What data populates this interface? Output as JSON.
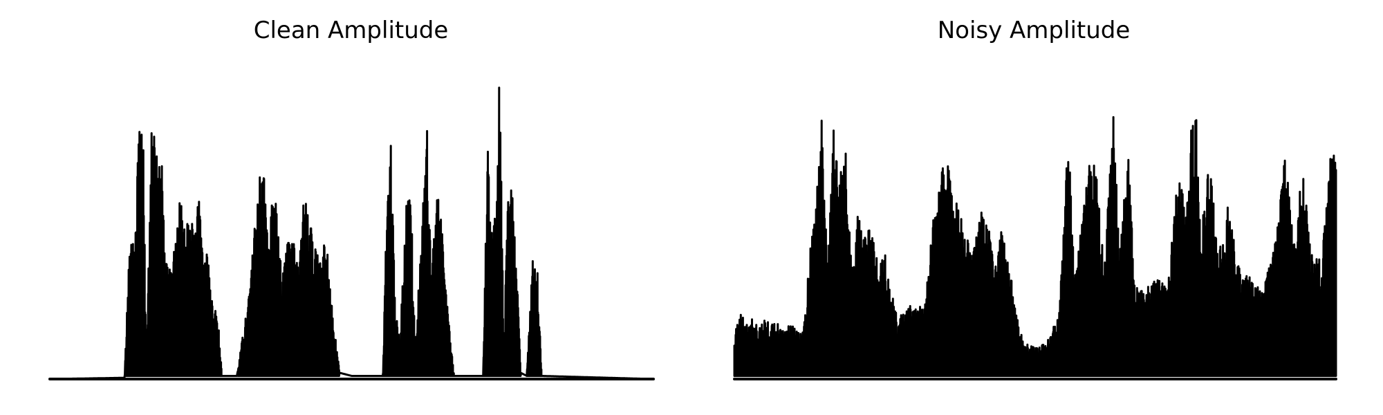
{
  "chart_data": [
    {
      "type": "line",
      "title": "Clean Amplitude",
      "xlabel": "",
      "ylabel": "",
      "axes": "off",
      "grid": false,
      "color": "#000000",
      "ylim": [
        0,
        1.0
      ],
      "envelope": [
        [
          0.0,
          0.0
        ],
        [
          0.124,
          0.004
        ],
        [
          0.13,
          0.35
        ],
        [
          0.135,
          0.55
        ],
        [
          0.14,
          0.35
        ],
        [
          0.148,
          0.83
        ],
        [
          0.155,
          0.75
        ],
        [
          0.16,
          0.03
        ],
        [
          0.168,
          0.79
        ],
        [
          0.172,
          0.8
        ],
        [
          0.178,
          0.7
        ],
        [
          0.185,
          0.75
        ],
        [
          0.192,
          0.38
        ],
        [
          0.2,
          0.35
        ],
        [
          0.21,
          0.45
        ],
        [
          0.215,
          0.62
        ],
        [
          0.222,
          0.48
        ],
        [
          0.23,
          0.51
        ],
        [
          0.24,
          0.5
        ],
        [
          0.248,
          0.58
        ],
        [
          0.255,
          0.4
        ],
        [
          0.262,
          0.4
        ],
        [
          0.268,
          0.28
        ],
        [
          0.28,
          0.17
        ],
        [
          0.285,
          0.01
        ],
        [
          0.31,
          0.01
        ],
        [
          0.33,
          0.28
        ],
        [
          0.34,
          0.5
        ],
        [
          0.352,
          0.72
        ],
        [
          0.362,
          0.5
        ],
        [
          0.372,
          0.65
        ],
        [
          0.385,
          0.32
        ],
        [
          0.395,
          0.45
        ],
        [
          0.405,
          0.44
        ],
        [
          0.412,
          0.34
        ],
        [
          0.42,
          0.61
        ],
        [
          0.428,
          0.53
        ],
        [
          0.44,
          0.43
        ],
        [
          0.45,
          0.36
        ],
        [
          0.458,
          0.49
        ],
        [
          0.468,
          0.22
        ],
        [
          0.48,
          0.02
        ],
        [
          0.5,
          0.01
        ],
        [
          0.552,
          0.01
        ],
        [
          0.558,
          0.58
        ],
        [
          0.565,
          0.76
        ],
        [
          0.572,
          0.23
        ],
        [
          0.58,
          0.12
        ],
        [
          0.59,
          0.55
        ],
        [
          0.597,
          0.68
        ],
        [
          0.605,
          0.1
        ],
        [
          0.625,
          0.8
        ],
        [
          0.632,
          0.3
        ],
        [
          0.64,
          0.66
        ],
        [
          0.65,
          0.48
        ],
        [
          0.66,
          0.2
        ],
        [
          0.67,
          0.01
        ],
        [
          0.718,
          0.01
        ],
        [
          0.725,
          0.79
        ],
        [
          0.732,
          0.5
        ],
        [
          0.74,
          0.52
        ],
        [
          0.745,
          1.0
        ],
        [
          0.752,
          0.1
        ],
        [
          0.76,
          0.66
        ],
        [
          0.77,
          0.55
        ],
        [
          0.78,
          0.02
        ],
        [
          0.79,
          0.01
        ],
        [
          0.8,
          0.38
        ],
        [
          0.808,
          0.35
        ],
        [
          0.815,
          0.01
        ],
        [
          1.0,
          0.0
        ]
      ]
    },
    {
      "type": "line",
      "title": "Noisy Amplitude",
      "xlabel": "",
      "ylabel": "",
      "axes": "off",
      "grid": false,
      "color": "#000000",
      "ylim": [
        0,
        1.0
      ],
      "envelope": [
        [
          0.0,
          0.15
        ],
        [
          0.01,
          0.22
        ],
        [
          0.02,
          0.18
        ],
        [
          0.03,
          0.2
        ],
        [
          0.04,
          0.16
        ],
        [
          0.05,
          0.2
        ],
        [
          0.06,
          0.17
        ],
        [
          0.07,
          0.19
        ],
        [
          0.08,
          0.16
        ],
        [
          0.09,
          0.19
        ],
        [
          0.105,
          0.15
        ],
        [
          0.115,
          0.15
        ],
        [
          0.125,
          0.4
        ],
        [
          0.135,
          0.55
        ],
        [
          0.145,
          0.84
        ],
        [
          0.155,
          0.35
        ],
        [
          0.165,
          0.8
        ],
        [
          0.175,
          0.65
        ],
        [
          0.185,
          0.72
        ],
        [
          0.195,
          0.35
        ],
        [
          0.205,
          0.55
        ],
        [
          0.215,
          0.45
        ],
        [
          0.225,
          0.5
        ],
        [
          0.24,
          0.35
        ],
        [
          0.25,
          0.42
        ],
        [
          0.26,
          0.3
        ],
        [
          0.27,
          0.2
        ],
        [
          0.285,
          0.22
        ],
        [
          0.3,
          0.25
        ],
        [
          0.315,
          0.22
        ],
        [
          0.33,
          0.5
        ],
        [
          0.35,
          0.72
        ],
        [
          0.365,
          0.6
        ],
        [
          0.38,
          0.5
        ],
        [
          0.395,
          0.4
        ],
        [
          0.41,
          0.55
        ],
        [
          0.425,
          0.48
        ],
        [
          0.435,
          0.35
        ],
        [
          0.445,
          0.5
        ],
        [
          0.455,
          0.4
        ],
        [
          0.465,
          0.25
        ],
        [
          0.48,
          0.12
        ],
        [
          0.5,
          0.1
        ],
        [
          0.52,
          0.12
        ],
        [
          0.54,
          0.22
        ],
        [
          0.555,
          0.79
        ],
        [
          0.565,
          0.35
        ],
        [
          0.58,
          0.55
        ],
        [
          0.59,
          0.75
        ],
        [
          0.6,
          0.7
        ],
        [
          0.615,
          0.35
        ],
        [
          0.63,
          0.87
        ],
        [
          0.64,
          0.4
        ],
        [
          0.655,
          0.74
        ],
        [
          0.665,
          0.3
        ],
        [
          0.68,
          0.28
        ],
        [
          0.7,
          0.32
        ],
        [
          0.72,
          0.3
        ],
        [
          0.74,
          0.7
        ],
        [
          0.75,
          0.5
        ],
        [
          0.765,
          1.0
        ],
        [
          0.775,
          0.45
        ],
        [
          0.79,
          0.72
        ],
        [
          0.805,
          0.4
        ],
        [
          0.82,
          0.55
        ],
        [
          0.84,
          0.35
        ],
        [
          0.86,
          0.32
        ],
        [
          0.88,
          0.3
        ],
        [
          0.9,
          0.45
        ],
        [
          0.915,
          0.72
        ],
        [
          0.93,
          0.45
        ],
        [
          0.945,
          0.68
        ],
        [
          0.96,
          0.4
        ],
        [
          0.975,
          0.38
        ],
        [
          0.99,
          0.7
        ],
        [
          1.0,
          0.74
        ]
      ]
    }
  ]
}
